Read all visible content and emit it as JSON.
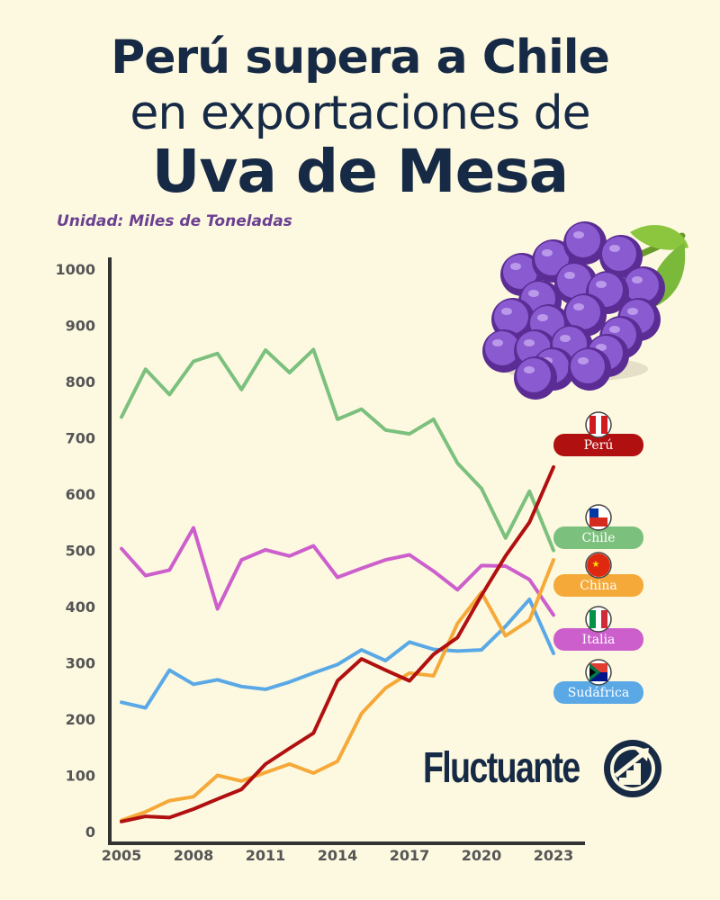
{
  "title": {
    "line1": "Perú supera a Chile",
    "line2": "en exportaciones de",
    "line3": "Uva de Mesa"
  },
  "unit_label": "Unidad: Miles de Toneladas",
  "brand": {
    "name": "Fluctuante",
    "logo_icon": "rising-stairs-arrow-icon"
  },
  "illustration": "grapes-icon",
  "chart_data": {
    "type": "line",
    "x_ticks": [
      2005,
      2008,
      2011,
      2014,
      2017,
      2020,
      2023
    ],
    "y_ticks": [
      0,
      100,
      200,
      300,
      400,
      500,
      600,
      700,
      800,
      900,
      1000
    ],
    "xlim": [
      2005,
      2023
    ],
    "ylim": [
      0,
      1000
    ],
    "grid": false,
    "x": [
      2005,
      2006,
      2007,
      2008,
      2009,
      2010,
      2011,
      2012,
      2013,
      2014,
      2015,
      2016,
      2017,
      2018,
      2019,
      2020,
      2021,
      2022,
      2023
    ],
    "series": [
      {
        "name": "Perú",
        "color": "#b01010",
        "badge": "#b01010",
        "flag": "peru-flag-icon",
        "values": [
          18,
          27,
          25,
          40,
          58,
          75,
          120,
          148,
          175,
          268,
          307,
          287,
          268,
          315,
          345,
          420,
          490,
          550,
          648
        ]
      },
      {
        "name": "Chile",
        "color": "#7cc07e",
        "badge": "#7cc07e",
        "flag": "chile-flag-icon",
        "values": [
          737,
          822,
          777,
          836,
          850,
          786,
          856,
          816,
          857,
          733,
          751,
          714,
          707,
          733,
          655,
          610,
          522,
          605,
          500
        ]
      },
      {
        "name": "China",
        "color": "#f5a938",
        "badge": "#f5a938",
        "flag": "china-flag-icon",
        "values": [
          20,
          35,
          55,
          62,
          100,
          90,
          105,
          120,
          104,
          125,
          210,
          255,
          282,
          277,
          370,
          425,
          348,
          376,
          483
        ]
      },
      {
        "name": "Italia",
        "color": "#cc5fcc",
        "badge": "#cc5fcc",
        "flag": "italy-flag-icon",
        "values": [
          503,
          455,
          465,
          540,
          396,
          483,
          501,
          490,
          508,
          452,
          468,
          483,
          492,
          463,
          430,
          473,
          472,
          448,
          385
        ]
      },
      {
        "name": "Sudáfrica",
        "color": "#5aa9e6",
        "badge": "#5aa9e6",
        "flag": "south-africa-flag-icon",
        "values": [
          230,
          220,
          287,
          262,
          270,
          258,
          253,
          266,
          282,
          297,
          323,
          304,
          337,
          324,
          321,
          323,
          365,
          413,
          317
        ]
      }
    ]
  }
}
